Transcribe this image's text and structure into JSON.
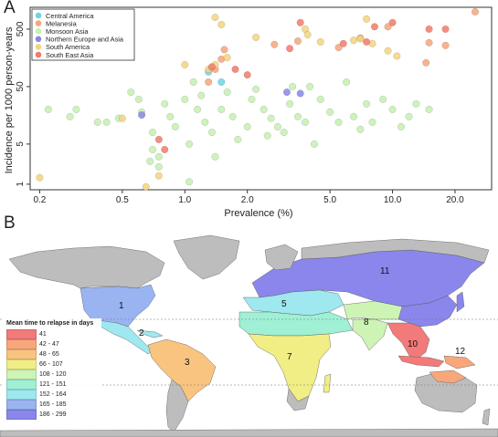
{
  "panel_a": {
    "letter": "A",
    "chart_data": {
      "type": "scatter",
      "xlabel": "Prevalence (%)",
      "ylabel": "Incidence per 1000 person-years",
      "x_scale": "log",
      "y_scale": "log",
      "xlim": [
        0.18,
        30
      ],
      "ylim": [
        0.8,
        1200
      ],
      "x_ticks": [
        0.2,
        0.5,
        1.0,
        2.0,
        5.0,
        10.0,
        20.0
      ],
      "x_tick_labels": [
        "0.2",
        "0.5",
        "1.0",
        "2.0",
        "5.0",
        "10.0",
        "20.0"
      ],
      "y_ticks": [
        1,
        5,
        50,
        500
      ],
      "y_tick_labels": [
        "1",
        "5",
        "50",
        "500"
      ],
      "legend_position": "top-left",
      "series": [
        {
          "name": "Central America",
          "color": "#6fd4e4",
          "x": [
            1.3,
            1.5
          ],
          "y": [
            90,
            60
          ]
        },
        {
          "name": "Melanesia",
          "color": "#f4a679",
          "x": [
            25.0,
            18.0,
            15.0,
            14.5,
            9.5,
            7.0,
            5.5,
            3.5,
            2.7,
            1.55,
            1.5,
            1.4,
            1.3
          ],
          "y": [
            1000,
            260,
            290,
            130,
            550,
            350,
            240,
            310,
            270,
            220,
            150,
            100,
            60
          ]
        },
        {
          "name": "Monsoon Asia",
          "color": "#c6f0b0",
          "x": [
            0.22,
            0.28,
            0.3,
            0.38,
            0.42,
            0.48,
            0.55,
            0.6,
            0.62,
            0.7,
            0.75,
            0.8,
            0.85,
            0.9,
            1.0,
            1.05,
            1.1,
            1.15,
            1.2,
            1.25,
            1.35,
            1.5,
            1.6,
            1.7,
            1.8,
            2.0,
            2.1,
            2.2,
            2.4,
            2.6,
            2.8,
            3.0,
            3.2,
            3.5,
            3.8,
            4.0,
            4.2,
            4.5,
            5.0,
            5.5,
            6.0,
            6.5,
            7.0,
            7.5,
            8.0,
            9.0,
            10.0,
            11.0,
            12.0,
            13.0,
            15.0,
            1.4,
            0.7,
            0.75,
            2.5,
            3.3,
            1.05,
            0.68
          ],
          "y": [
            20,
            15,
            20,
            12,
            12,
            14,
            40,
            30,
            18,
            8,
            3,
            25,
            15,
            10,
            30,
            1.1,
            60,
            20,
            35,
            12,
            8,
            20,
            40,
            15,
            6,
            10,
            30,
            45,
            20,
            14,
            10,
            8,
            25,
            15,
            12,
            50,
            5,
            30,
            18,
            12,
            60,
            15,
            9,
            25,
            12,
            30,
            20,
            10,
            15,
            25,
            20,
            3,
            4,
            2,
            7,
            50,
            5,
            2.5
          ]
        },
        {
          "name": "Northern Europe and Asia",
          "color": "#8a86e8",
          "x": [
            0.62,
            3.1,
            3.6
          ],
          "y": [
            16,
            40,
            38
          ]
        },
        {
          "name": "South America",
          "color": "#f5d47e",
          "x": [
            0.2,
            0.65,
            0.75,
            1.4,
            1.5,
            1.6,
            1.3,
            1.4,
            2.2,
            3.8,
            3.9,
            4.5,
            6.5,
            7.0,
            7.5,
            8.0,
            9.5,
            10.5,
            0.5,
            1.0
          ],
          "y": [
            1.3,
            0.9,
            1.4,
            800,
            600,
            160,
            100,
            120,
            360,
            500,
            400,
            300,
            320,
            340,
            750,
            280,
            210,
            170,
            14,
            120
          ]
        },
        {
          "name": "South East Asia",
          "color": "#f27a6a",
          "x": [
            1.35,
            1.75,
            3.2,
            3.6,
            5.8,
            7.5,
            8.2,
            10.0,
            15.0,
            18.0,
            2.0,
            0.8,
            0.75
          ],
          "y": [
            110,
            100,
            230,
            650,
            280,
            300,
            550,
            650,
            500,
            500,
            80,
            4,
            6
          ]
        }
      ]
    }
  },
  "panel_b": {
    "letter": "B",
    "legend_title": "Mean time to relapse in days",
    "legend": [
      {
        "label": "41",
        "color": "#f37a7a"
      },
      {
        "label": "42 - 47",
        "color": "#f8a77b"
      },
      {
        "label": "48 - 65",
        "color": "#f9c47f"
      },
      {
        "label": "66 - 107",
        "color": "#f1ee86"
      },
      {
        "label": "108 - 120",
        "color": "#cdf4b4"
      },
      {
        "label": "121 - 151",
        "color": "#9ff0d4"
      },
      {
        "label": "152 - 164",
        "color": "#9fe8ef"
      },
      {
        "label": "165 - 185",
        "color": "#9ab4f2"
      },
      {
        "label": "186 - 299",
        "color": "#8a86ec"
      }
    ],
    "region_labels": [
      "1",
      "2",
      "3",
      "5",
      "7",
      "8",
      "10",
      "11",
      "12"
    ]
  }
}
